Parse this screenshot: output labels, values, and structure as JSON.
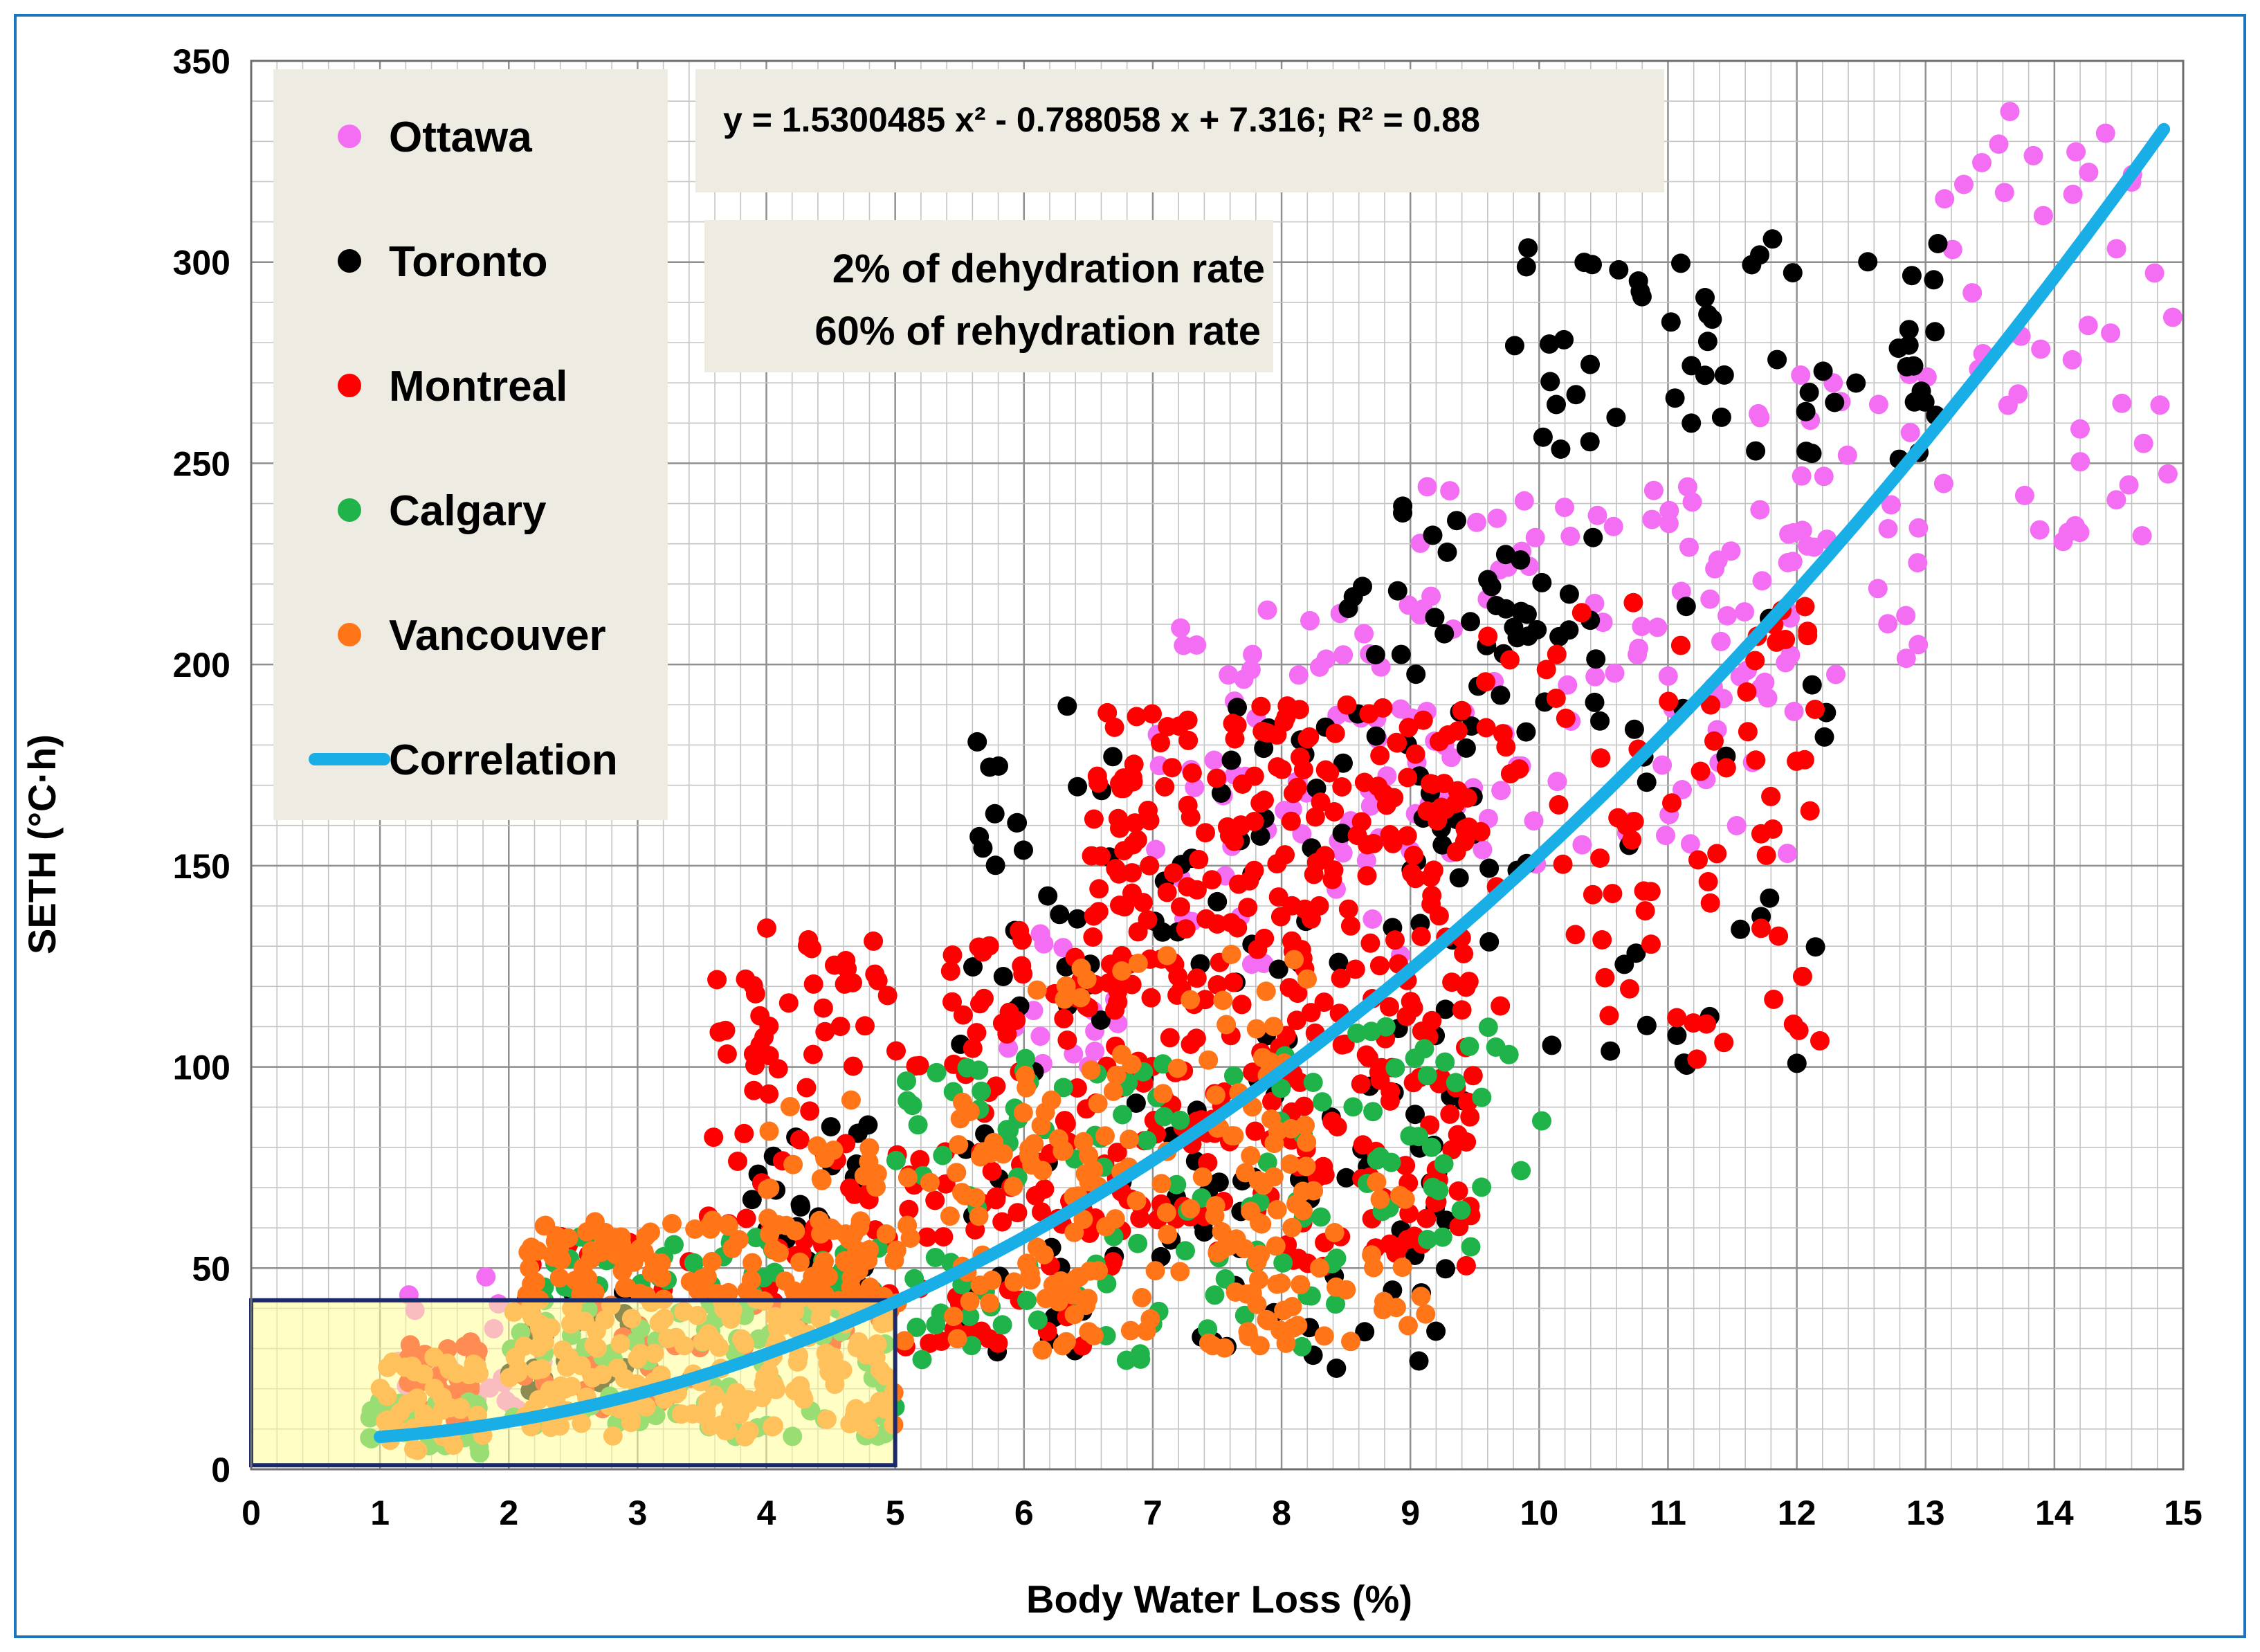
{
  "chart_data": {
    "type": "scatter",
    "title": "",
    "xlabel": "Body Water Loss (%)",
    "ylabel": "SETH (°C·h)",
    "xlim": [
      0,
      15
    ],
    "ylim": [
      0,
      350
    ],
    "xticks": [
      "0",
      "1",
      "2",
      "3",
      "4",
      "5",
      "6",
      "7",
      "8",
      "9",
      "10",
      "11",
      "12",
      "13",
      "14",
      "15"
    ],
    "yticks": [
      "0",
      "50",
      "100",
      "150",
      "200",
      "250",
      "300",
      "350"
    ],
    "grid": true,
    "legend_position": "top-left",
    "legend": [
      {
        "name": "Ottawa",
        "color": "#f36ef2",
        "kind": "point"
      },
      {
        "name": "Toronto",
        "color": "#000000",
        "kind": "point"
      },
      {
        "name": "Montreal",
        "color": "#ff0000",
        "kind": "point"
      },
      {
        "name": "Calgary",
        "color": "#1fb34a",
        "kind": "point"
      },
      {
        "name": "Vancouver",
        "color": "#ff7518",
        "kind": "point"
      },
      {
        "name": "Correlation",
        "color": "#1aaee6",
        "kind": "line"
      }
    ],
    "equation": "y = 1.5300485 x² - 0.788058 x + 7.316;   R² = 0.88",
    "annotation_lines": [
      "2%  of  dehydration rate",
      "60%  of rehydration rate"
    ],
    "correlation": {
      "a": 1.5300485,
      "b": -0.788058,
      "c": 7.316,
      "x_range": [
        1,
        14.85
      ],
      "r2": 0.88
    },
    "highlight_box": {
      "x": [
        0,
        5
      ],
      "y": [
        1,
        42
      ]
    },
    "series": [
      {
        "name": "Ottawa",
        "color": "#f36ef2",
        "clusters": [
          {
            "x": [
              1.0,
              2.3
            ],
            "y": [
              8,
              48
            ],
            "n": 20
          },
          {
            "x": [
              5.5,
              7.0
            ],
            "y": [
              100,
              135
            ],
            "n": 15
          },
          {
            "x": [
              7.0,
              9.5
            ],
            "y": [
              125,
              215
            ],
            "n": 70
          },
          {
            "x": [
              9.0,
              12.0
            ],
            "y": [
              150,
              245
            ],
            "n": 90
          },
          {
            "x": [
              11.5,
              13.0
            ],
            "y": [
              195,
              275
            ],
            "n": 35
          },
          {
            "x": [
              13.0,
              15.0
            ],
            "y": [
              230,
              340
            ],
            "n": 45
          }
        ]
      },
      {
        "name": "Toronto",
        "color": "#000000",
        "clusters": [
          {
            "x": [
              2.0,
              3.0
            ],
            "y": [
              15,
              44
            ],
            "n": 20
          },
          {
            "x": [
              3.8,
              4.8
            ],
            "y": [
              45,
              87
            ],
            "n": 25
          },
          {
            "x": [
              5.5,
              9.5
            ],
            "y": [
              25,
              195
            ],
            "n": 150
          },
          {
            "x": [
              8.5,
              10.6
            ],
            "y": [
              180,
              241
            ],
            "n": 40
          },
          {
            "x": [
              9.8,
              13.2
            ],
            "y": [
              248,
              308
            ],
            "n": 60
          },
          {
            "x": [
              9.0,
              12.4
            ],
            "y": [
              100,
              218
            ],
            "n": 40
          }
        ]
      },
      {
        "name": "Montreal",
        "color": "#ff0000",
        "clusters": [
          {
            "x": [
              1.2,
              1.8
            ],
            "y": [
              12,
              32
            ],
            "n": 40
          },
          {
            "x": [
              2.0,
              3.5
            ],
            "y": [
              15,
              58
            ],
            "n": 40
          },
          {
            "x": [
              3.5,
              6.5
            ],
            "y": [
              30,
              135
            ],
            "n": 180
          },
          {
            "x": [
              6.5,
              9.5
            ],
            "y": [
              50,
              190
            ],
            "n": 380
          },
          {
            "x": [
              9.5,
              12.2
            ],
            "y": [
              100,
              218
            ],
            "n": 80
          }
        ]
      },
      {
        "name": "Calgary",
        "color": "#1fb34a",
        "clusters": [
          {
            "x": [
              0.9,
              1.8
            ],
            "y": [
              4,
              18
            ],
            "n": 30
          },
          {
            "x": [
              2.0,
              5.0
            ],
            "y": [
              8,
              58
            ],
            "n": 120
          },
          {
            "x": [
              5.0,
              8.5
            ],
            "y": [
              26,
              103
            ],
            "n": 100
          },
          {
            "x": [
              8.5,
              10.1
            ],
            "y": [
              55,
              112
            ],
            "n": 35
          }
        ]
      },
      {
        "name": "Vancouver",
        "color": "#ff7518",
        "clusters": [
          {
            "x": [
              1.0,
              1.8
            ],
            "y": [
              4,
              28
            ],
            "n": 40
          },
          {
            "x": [
              2.0,
              5.0
            ],
            "y": [
              8,
              62
            ],
            "n": 280
          },
          {
            "x": [
              4.0,
              6.5
            ],
            "y": [
              28,
              92
            ],
            "n": 90
          },
          {
            "x": [
              6.0,
              8.2
            ],
            "y": [
              30,
              128
            ],
            "n": 120
          },
          {
            "x": [
              7.5,
              9.2
            ],
            "y": [
              30,
              78
            ],
            "n": 40
          }
        ]
      }
    ]
  }
}
